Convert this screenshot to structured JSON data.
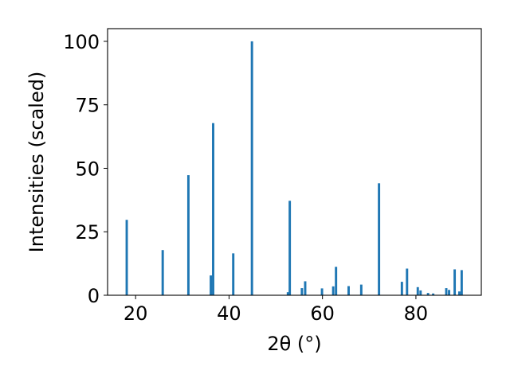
{
  "chart_data": {
    "type": "bar",
    "xlabel": "2θ (°)",
    "ylabel": "Intensities (scaled)",
    "xlim": [
      14,
      94
    ],
    "ylim": [
      0,
      105
    ],
    "bar_width_data": 0.5,
    "x_ticks": [
      20,
      40,
      60,
      80
    ],
    "y_ticks": [
      0,
      25,
      50,
      75,
      100
    ],
    "x_tick_labels": [
      "20",
      "40",
      "60",
      "80"
    ],
    "y_tick_labels": [
      "0",
      "25",
      "50",
      "75",
      "100"
    ],
    "grid": false,
    "bar_color": "#1f77b4",
    "x": [
      18.1,
      25.8,
      31.3,
      36.1,
      36.6,
      40.9,
      44.9,
      52.6,
      53.0,
      55.6,
      56.3,
      59.9,
      62.3,
      62.9,
      65.6,
      68.3,
      72.1,
      77.0,
      78.1,
      80.4,
      81.0,
      82.6,
      83.7,
      86.5,
      87.1,
      88.3,
      89.3,
      89.8
    ],
    "values": [
      29.7,
      17.8,
      47.3,
      7.8,
      67.8,
      16.5,
      100.0,
      1.2,
      37.2,
      2.8,
      5.5,
      2.7,
      3.5,
      11.2,
      3.6,
      4.2,
      44.1,
      5.3,
      10.5,
      3.2,
      1.9,
      0.9,
      0.7,
      2.8,
      2.1,
      10.2,
      1.5,
      9.9
    ]
  }
}
